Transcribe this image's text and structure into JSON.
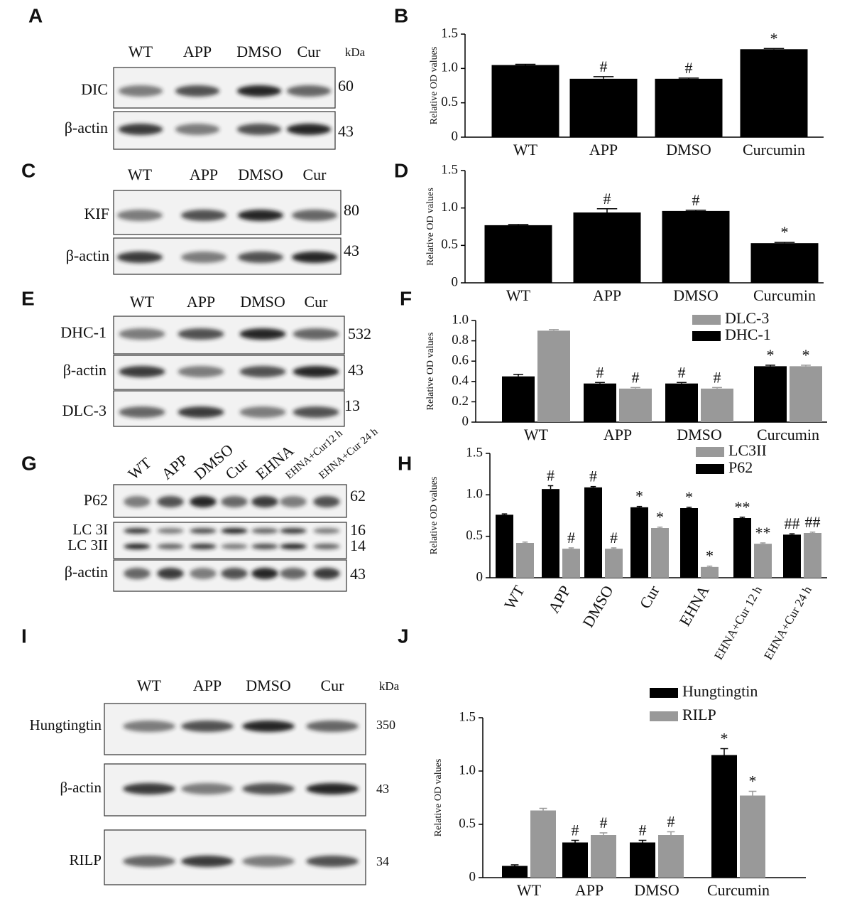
{
  "blots": [
    {
      "panel_label": "A",
      "lanes": [
        "WT",
        "APP",
        "DMSO",
        "Cur"
      ],
      "kda_header": "kDa",
      "rows": [
        {
          "labels": [
            "DIC"
          ],
          "kda": [
            60
          ]
        },
        {
          "labels": [
            "β-actin"
          ],
          "kda": [
            43
          ]
        }
      ]
    },
    {
      "panel_label": "C",
      "lanes": [
        "WT",
        "APP",
        "DMSO",
        "Cur"
      ],
      "rows": [
        {
          "labels": [
            "KIF"
          ],
          "kda": [
            80
          ]
        },
        {
          "labels": [
            "β-actin"
          ],
          "kda": [
            43
          ]
        }
      ]
    },
    {
      "panel_label": "E",
      "lanes": [
        "WT",
        "APP",
        "DMSO",
        "Cur"
      ],
      "rows": [
        {
          "labels": [
            "DHC-1"
          ],
          "kda": [
            532
          ]
        },
        {
          "labels": [
            "β-actin"
          ],
          "kda": [
            43
          ]
        },
        {
          "labels": [
            "DLC-3"
          ],
          "kda": [
            13
          ]
        }
      ]
    },
    {
      "panel_label": "G",
      "lanes": [
        "WT",
        "APP",
        "DMSO",
        "Cur",
        "EHNA",
        "EHNA+Cur12 h",
        "EHNA+Cur 24 h"
      ],
      "rows": [
        {
          "labels": [
            "P62"
          ],
          "kda": [
            62
          ]
        },
        {
          "labels": [
            "LC 3I",
            "LC 3II"
          ],
          "kda": [
            16,
            14
          ]
        },
        {
          "labels": [
            "β-actin"
          ],
          "kda": [
            43
          ]
        }
      ]
    },
    {
      "panel_label": "I",
      "lanes": [
        "WT",
        "APP",
        "DMSO",
        "Cur"
      ],
      "kda_header": "kDa",
      "rows": [
        {
          "labels": [
            "Hungtingtin"
          ],
          "kda": [
            350
          ]
        },
        {
          "labels": [
            "β-actin"
          ],
          "kda": [
            43
          ]
        },
        {
          "labels": [
            "RILP"
          ],
          "kda": [
            34
          ]
        }
      ]
    }
  ],
  "chart_data": [
    {
      "type": "bar",
      "panel_label": "B",
      "y_label": "Relative OD values",
      "categories": [
        "WT",
        "APP",
        "DMSO",
        "Curcumin"
      ],
      "series": [
        {
          "color": "#000000",
          "values": [
            1.05,
            0.85,
            0.85,
            1.28
          ],
          "errors": [
            0.01,
            0.03,
            0.01,
            0.01
          ],
          "annotations": [
            null,
            "#",
            "#",
            "*"
          ]
        }
      ],
      "ylim": [
        0,
        1.5
      ],
      "yticks": [
        0,
        0.5,
        {
          "value": 1,
          "label": "1.0"
        },
        1.5
      ]
    },
    {
      "type": "bar",
      "panel_label": "D",
      "y_label": "Relative OD values",
      "categories": [
        "WT",
        "APP",
        "DMSO",
        "Curcumin"
      ],
      "series": [
        {
          "color": "#000000",
          "values": [
            0.77,
            0.94,
            0.96,
            0.53
          ],
          "errors": [
            0.01,
            0.05,
            0.01,
            0.01
          ],
          "annotations": [
            null,
            "#",
            "#",
            "*"
          ]
        }
      ],
      "ylim": [
        0,
        1.5
      ],
      "yticks": [
        0,
        0.5,
        {
          "value": 1,
          "label": "1.0"
        },
        1.5
      ]
    },
    {
      "type": "bar",
      "panel_label": "F",
      "y_label": "Relative OD values",
      "categories": [
        "WT",
        "APP",
        "DMSO",
        "Curcumin"
      ],
      "legend_reversed": true,
      "series": [
        {
          "name": "DHC-1",
          "color": "#000000",
          "values": [
            0.45,
            0.38,
            0.38,
            0.55
          ],
          "errors": [
            0.02,
            0.01,
            0.01,
            0.01
          ],
          "annotations": [
            null,
            "#",
            "#",
            "*"
          ]
        },
        {
          "name": "DLC-3",
          "color": "#999999",
          "values": [
            0.9,
            0.33,
            0.33,
            0.55
          ],
          "errors": [
            0.01,
            0.01,
            0.01,
            0.01
          ],
          "annotations": [
            null,
            "#",
            "#",
            "*"
          ]
        }
      ],
      "ylim": [
        0,
        1
      ],
      "yticks": [
        0,
        0.2,
        0.4,
        0.6,
        0.8,
        {
          "value": 1,
          "label": "1.0"
        }
      ]
    },
    {
      "type": "bar",
      "panel_label": "H",
      "y_label": "Relative OD values",
      "categories": [
        "WT",
        "APP",
        "DMSO",
        "Cur",
        "EHNA",
        "EHNA+Cur 12 h",
        "EHNA+Cur 24 h"
      ],
      "legend_reversed": true,
      "rotate_labels": true,
      "series": [
        {
          "name": "P62",
          "color": "#000000",
          "values": [
            0.76,
            1.07,
            1.09,
            0.85,
            0.84,
            0.72,
            0.52
          ],
          "errors": [
            0.01,
            0.04,
            0.01,
            0.01,
            0.01,
            0.01,
            0.01
          ],
          "annotations": [
            null,
            "#",
            "#",
            "*",
            "*",
            "**",
            "##"
          ]
        },
        {
          "name": "LC3II",
          "color": "#999999",
          "values": [
            0.42,
            0.35,
            0.35,
            0.6,
            0.13,
            0.41,
            0.54
          ],
          "errors": [
            0.01,
            0.01,
            0.01,
            0.01,
            0.01,
            0.01,
            0.01
          ],
          "annotations": [
            null,
            "#",
            "#",
            "*",
            "*",
            "**",
            "##"
          ]
        }
      ],
      "ylim": [
        0,
        1.5
      ],
      "yticks": [
        0,
        0.5,
        {
          "value": 1,
          "label": "1.0"
        },
        1.5
      ]
    },
    {
      "type": "bar",
      "panel_label": "J",
      "y_label": "Relative OD values",
      "categories": [
        "WT",
        "APP",
        "DMSO",
        "Curcumin"
      ],
      "series": [
        {
          "name": "Hungtingtin",
          "color": "#000000",
          "values": [
            0.11,
            0.33,
            0.33,
            1.15
          ],
          "errors": [
            0.01,
            0.02,
            0.02,
            0.06
          ],
          "annotations": [
            null,
            "#",
            "#",
            "*"
          ]
        },
        {
          "name": "RILP",
          "color": "#999999",
          "values": [
            0.63,
            0.4,
            0.4,
            0.77
          ],
          "errors": [
            0.02,
            0.02,
            0.03,
            0.04
          ],
          "annotations": [
            null,
            "#",
            "#",
            "*"
          ]
        }
      ],
      "ylim": [
        0,
        1.5
      ],
      "yticks": [
        0,
        0.5,
        {
          "value": 1,
          "label": "1.0"
        },
        1.5
      ]
    }
  ]
}
